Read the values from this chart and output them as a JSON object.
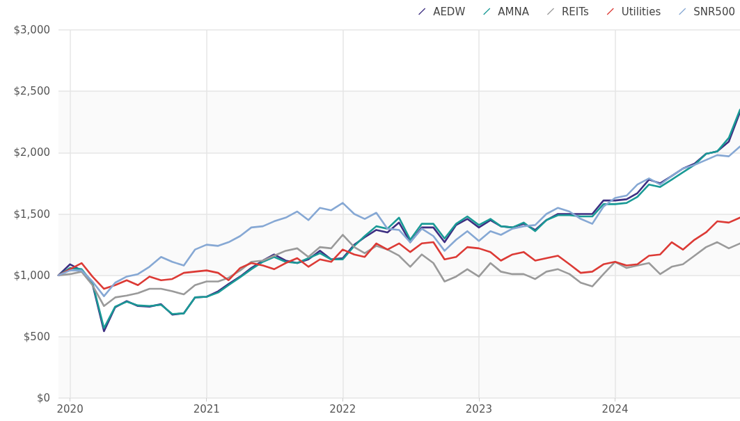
{
  "chart_data": {
    "type": "line",
    "x": [
      "2019-12",
      "2020-01",
      "2020-02",
      "2020-03",
      "2020-04",
      "2020-05",
      "2020-06",
      "2020-07",
      "2020-08",
      "2020-09",
      "2020-10",
      "2020-11",
      "2020-12",
      "2021-01",
      "2021-02",
      "2021-03",
      "2021-04",
      "2021-05",
      "2021-06",
      "2021-07",
      "2021-08",
      "2021-09",
      "2021-10",
      "2021-11",
      "2021-12",
      "2022-01",
      "2022-02",
      "2022-03",
      "2022-04",
      "2022-05",
      "2022-06",
      "2022-07",
      "2022-08",
      "2022-09",
      "2022-10",
      "2022-11",
      "2022-12",
      "2023-01",
      "2023-02",
      "2023-03",
      "2023-04",
      "2023-05",
      "2023-06",
      "2023-07",
      "2023-08",
      "2023-09",
      "2023-10",
      "2023-11",
      "2023-12",
      "2024-01",
      "2024-02",
      "2024-03",
      "2024-04",
      "2024-05",
      "2024-06",
      "2024-07",
      "2024-08",
      "2024-09",
      "2024-10",
      "2024-11",
      "2024-12"
    ],
    "series": [
      {
        "name": "AEDW",
        "color": "#3d2f82",
        "values": [
          1000,
          1090,
          1040,
          930,
          545,
          740,
          790,
          750,
          745,
          765,
          680,
          690,
          820,
          825,
          870,
          930,
          990,
          1060,
          1120,
          1170,
          1120,
          1100,
          1130,
          1200,
          1130,
          1140,
          1250,
          1310,
          1370,
          1350,
          1430,
          1270,
          1390,
          1390,
          1270,
          1410,
          1460,
          1390,
          1450,
          1400,
          1390,
          1420,
          1370,
          1450,
          1500,
          1500,
          1500,
          1500,
          1610,
          1610,
          1620,
          1670,
          1780,
          1750,
          1810,
          1870,
          1910,
          1990,
          2010,
          2090,
          2330
        ]
      },
      {
        "name": "AMNA",
        "color": "#1a9a96",
        "values": [
          1000,
          1060,
          1050,
          940,
          570,
          745,
          785,
          755,
          750,
          760,
          685,
          690,
          820,
          825,
          860,
          920,
          985,
          1050,
          1110,
          1150,
          1110,
          1100,
          1140,
          1180,
          1130,
          1130,
          1240,
          1320,
          1400,
          1380,
          1470,
          1290,
          1420,
          1420,
          1300,
          1420,
          1480,
          1410,
          1460,
          1400,
          1390,
          1430,
          1360,
          1450,
          1490,
          1490,
          1480,
          1480,
          1580,
          1580,
          1590,
          1640,
          1740,
          1720,
          1780,
          1840,
          1900,
          1990,
          2010,
          2120,
          2350
        ]
      },
      {
        "name": "REITs",
        "color": "#9a9a9a",
        "values": [
          1000,
          1010,
          1030,
          920,
          750,
          820,
          835,
          855,
          890,
          890,
          870,
          845,
          920,
          950,
          950,
          980,
          1040,
          1110,
          1120,
          1160,
          1200,
          1220,
          1150,
          1230,
          1220,
          1330,
          1230,
          1180,
          1240,
          1210,
          1160,
          1070,
          1170,
          1100,
          950,
          990,
          1050,
          990,
          1100,
          1030,
          1010,
          1010,
          970,
          1030,
          1050,
          1010,
          940,
          910,
          1010,
          1110,
          1060,
          1080,
          1100,
          1010,
          1070,
          1090,
          1160,
          1230,
          1270,
          1220,
          1260
        ]
      },
      {
        "name": "Utilities",
        "color": "#dc3a35",
        "values": [
          1000,
          1050,
          1100,
          990,
          890,
          920,
          960,
          920,
          990,
          960,
          970,
          1020,
          1030,
          1040,
          1020,
          960,
          1060,
          1100,
          1080,
          1050,
          1100,
          1140,
          1070,
          1130,
          1110,
          1210,
          1170,
          1150,
          1260,
          1210,
          1260,
          1190,
          1260,
          1270,
          1130,
          1150,
          1230,
          1220,
          1190,
          1120,
          1170,
          1190,
          1120,
          1140,
          1160,
          1090,
          1020,
          1030,
          1090,
          1110,
          1080,
          1090,
          1160,
          1170,
          1270,
          1210,
          1290,
          1350,
          1440,
          1430,
          1470
        ]
      },
      {
        "name": "SNR500",
        "color": "#86a8d4",
        "values": [
          1000,
          1040,
          1040,
          950,
          830,
          940,
          990,
          1010,
          1070,
          1150,
          1110,
          1080,
          1210,
          1250,
          1240,
          1270,
          1320,
          1390,
          1400,
          1440,
          1470,
          1520,
          1450,
          1550,
          1530,
          1590,
          1500,
          1460,
          1510,
          1380,
          1370,
          1270,
          1380,
          1320,
          1200,
          1290,
          1360,
          1280,
          1360,
          1330,
          1380,
          1400,
          1410,
          1500,
          1550,
          1520,
          1460,
          1420,
          1560,
          1630,
          1650,
          1740,
          1790,
          1740,
          1810,
          1870,
          1900,
          1940,
          1980,
          1970,
          2050
        ]
      }
    ],
    "xlim": [
      "2019-12",
      "2024-12"
    ],
    "xticks": [
      {
        "value": "2020-01",
        "label": "2020"
      },
      {
        "value": "2021-01",
        "label": "2021"
      },
      {
        "value": "2022-01",
        "label": "2022"
      },
      {
        "value": "2023-01",
        "label": "2023"
      },
      {
        "value": "2024-01",
        "label": "2024"
      }
    ],
    "ylim": [
      0,
      3000
    ],
    "yticks": [
      {
        "value": 0,
        "label": "$0"
      },
      {
        "value": 500,
        "label": "$500"
      },
      {
        "value": 1000,
        "label": "$1,000"
      },
      {
        "value": 1500,
        "label": "$1,500"
      },
      {
        "value": 2000,
        "label": "$2,000"
      },
      {
        "value": 2500,
        "label": "$2,500"
      },
      {
        "value": 3000,
        "label": "$3,000"
      }
    ],
    "grid": true,
    "legend": "top right",
    "marker": "none",
    "line_style": "solid"
  }
}
